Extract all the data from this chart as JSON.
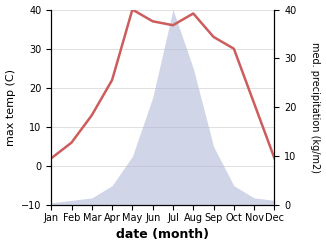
{
  "months": [
    "Jan",
    "Feb",
    "Mar",
    "Apr",
    "May",
    "Jun",
    "Jul",
    "Aug",
    "Sep",
    "Oct",
    "Nov",
    "Dec"
  ],
  "month_indices": [
    1,
    2,
    3,
    4,
    5,
    6,
    7,
    8,
    9,
    10,
    11,
    12
  ],
  "temperature": [
    2,
    6,
    13,
    22,
    40,
    37,
    36,
    39,
    33,
    30,
    16,
    2
  ],
  "precipitation": [
    0.5,
    1,
    1.5,
    4,
    10,
    22,
    40,
    28,
    12,
    4,
    1.5,
    1
  ],
  "temp_color": "#cd5c5c",
  "precip_color": "#aab4d4",
  "precip_fill_alpha": 0.55,
  "temp_ylim": [
    -10,
    40
  ],
  "precip_ylim": [
    0,
    40
  ],
  "temp_yticks": [
    -10,
    0,
    10,
    20,
    30,
    40
  ],
  "precip_yticks": [
    0,
    10,
    20,
    30,
    40
  ],
  "ylabel_left": "max temp (C)",
  "ylabel_right": "med. precipitation (kg/m2)",
  "xlabel": "date (month)",
  "background_color": "#ffffff",
  "line_width": 1.8,
  "figsize": [
    3.26,
    2.47
  ],
  "dpi": 100
}
